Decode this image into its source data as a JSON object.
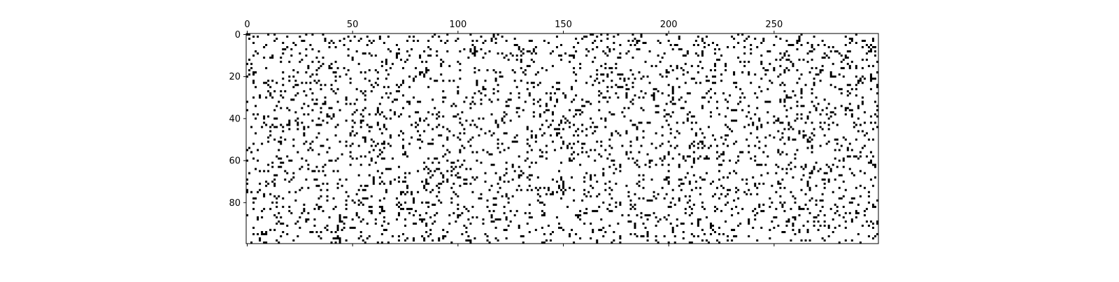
{
  "chart_data": {
    "type": "heatmap",
    "title": "",
    "xlabel": "",
    "ylabel": "",
    "rows": 100,
    "cols": 300,
    "xlim": [
      -0.5,
      299.5
    ],
    "ylim": [
      99.5,
      -0.5
    ],
    "fill_fraction": 0.1,
    "generator_seed": 12345,
    "cell_values": "binary: 1 = black, 0 = white (sparse random pattern)",
    "colors": {
      "filled": "#000000",
      "empty": "#ffffff"
    },
    "x_axis": {
      "position": "top",
      "ticks": [
        0,
        50,
        100,
        150,
        200,
        250
      ]
    },
    "y_axis": {
      "position": "left",
      "ticks": [
        0,
        20,
        40,
        60,
        80
      ]
    },
    "grid": false,
    "legend": "none"
  }
}
